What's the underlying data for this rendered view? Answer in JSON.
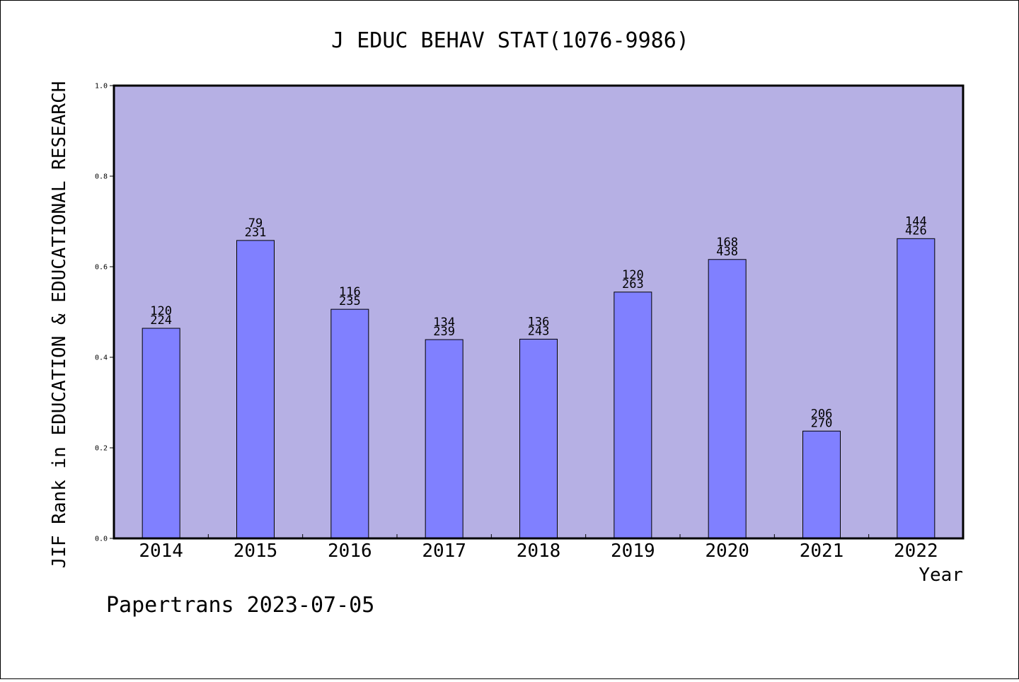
{
  "chart_data": {
    "type": "bar",
    "title": "J EDUC BEHAV STAT(1076-9986)",
    "xlabel": "Year",
    "ylabel": "JIF Rank in EDUCATION & EDUCATIONAL RESEARCH",
    "ylim": [
      0.0,
      1.0
    ],
    "yticks": [
      "0.0",
      "0.2",
      "0.4",
      "0.6",
      "0.8",
      "1.0"
    ],
    "categories": [
      "2014",
      "2015",
      "2016",
      "2017",
      "2018",
      "2019",
      "2020",
      "2021",
      "2022"
    ],
    "values": [
      0.464,
      0.658,
      0.506,
      0.439,
      0.44,
      0.544,
      0.616,
      0.237,
      0.662
    ],
    "rank": [
      "120",
      "79",
      "116",
      "134",
      "136",
      "120",
      "168",
      "206",
      "144"
    ],
    "total": [
      "224",
      "231",
      "235",
      "239",
      "243",
      "263",
      "438",
      "270",
      "426"
    ],
    "grid": false,
    "legend": "none",
    "colors": {
      "plot_background": "#b6b0e4",
      "bar_fill": "#8080ff",
      "bar_stroke": "#000000"
    }
  },
  "footer": {
    "text": "Papertrans 2023-07-05"
  }
}
